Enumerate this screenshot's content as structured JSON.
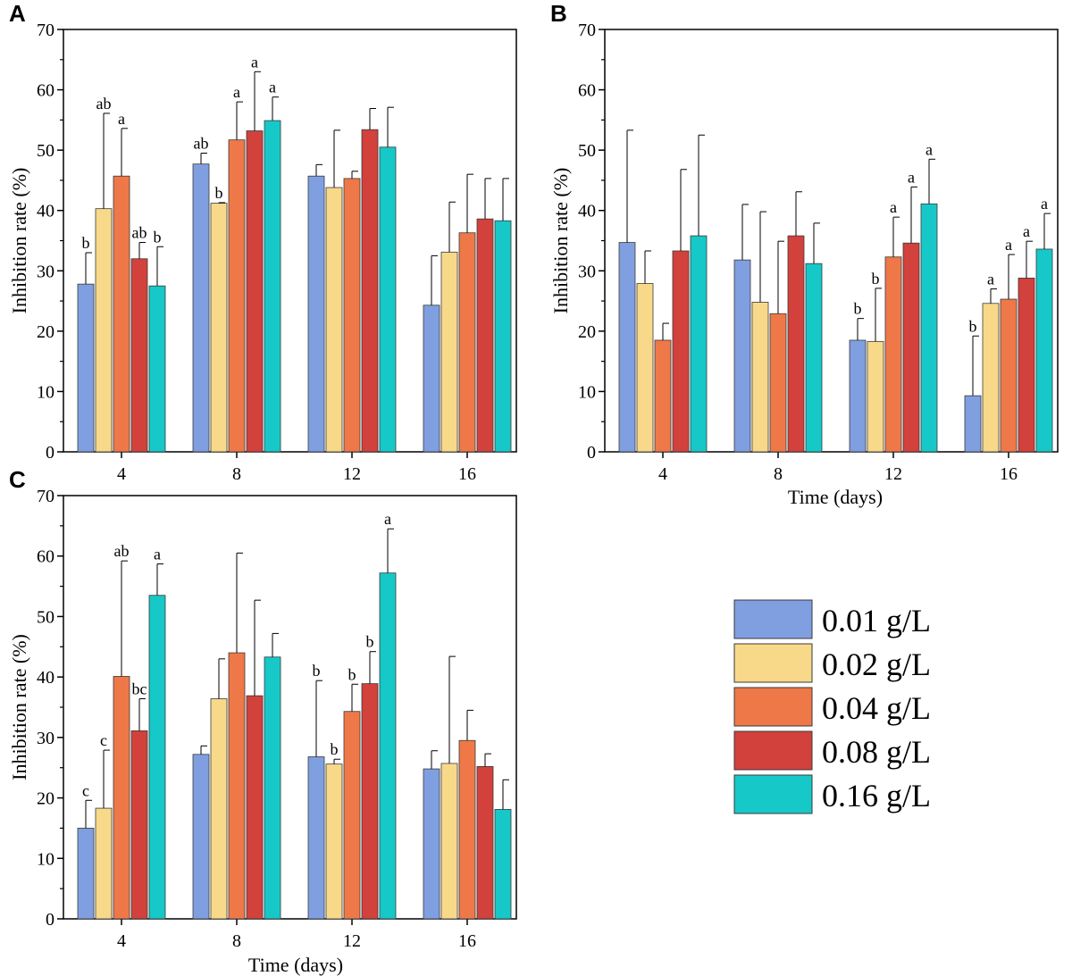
{
  "colors": {
    "0.01 g/L": "#7f9fe0",
    "0.02 g/L": "#f8d98a",
    "0.04 g/L": "#ef7848",
    "0.08 g/L": "#d2413c",
    "0.16 g/L": "#16c8c8",
    "error_bar": "#000000"
  },
  "legend": {
    "entries": [
      "0.01 g/L",
      "0.02 g/L",
      "0.04 g/L",
      "0.08 g/L",
      "0.16 g/L"
    ]
  },
  "chart_data": [
    {
      "type": "bar",
      "panel": "A",
      "title": "",
      "categories": [
        "4",
        "8",
        "12",
        "16"
      ],
      "xlabel": "",
      "ylabel": "Inhibition rate (%)",
      "ylim": [
        0,
        70
      ],
      "yticks": [
        0,
        10,
        20,
        30,
        40,
        50,
        60,
        70
      ],
      "series": [
        {
          "name": "0.01 g/L",
          "values": [
            27.8,
            47.7,
            45.7,
            24.3
          ],
          "errors": [
            5.2,
            1.8,
            1.9,
            8.2
          ],
          "labels": [
            "b",
            "ab",
            "",
            ""
          ]
        },
        {
          "name": "0.02 g/L",
          "values": [
            40.3,
            41.2,
            43.8,
            33.1
          ],
          "errors": [
            15.8,
            0.1,
            9.5,
            8.3
          ],
          "labels": [
            "ab",
            "b",
            "",
            ""
          ]
        },
        {
          "name": "0.04 g/L",
          "values": [
            45.7,
            51.7,
            45.3,
            36.3
          ],
          "errors": [
            7.9,
            6.3,
            1.2,
            9.7
          ],
          "labels": [
            "a",
            "a",
            "",
            ""
          ]
        },
        {
          "name": "0.08 g/L",
          "values": [
            32.0,
            53.2,
            53.4,
            38.6
          ],
          "errors": [
            2.7,
            9.8,
            3.5,
            6.7
          ],
          "labels": [
            "ab",
            "a",
            "",
            ""
          ]
        },
        {
          "name": "0.16 g/L",
          "values": [
            27.5,
            54.9,
            50.5,
            38.3
          ],
          "errors": [
            6.5,
            3.9,
            6.6,
            7.0
          ],
          "labels": [
            "b",
            "a",
            "",
            ""
          ]
        }
      ]
    },
    {
      "type": "bar",
      "panel": "B",
      "title": "",
      "categories": [
        "4",
        "8",
        "12",
        "16"
      ],
      "xlabel": "Time (days)",
      "ylabel": "Inhibition rate (%)",
      "ylim": [
        0,
        70
      ],
      "yticks": [
        0,
        10,
        20,
        30,
        40,
        50,
        60,
        70
      ],
      "series": [
        {
          "name": "0.01 g/L",
          "values": [
            34.7,
            31.8,
            18.5,
            9.3
          ],
          "errors": [
            18.6,
            9.2,
            3.6,
            9.9
          ],
          "labels": [
            "",
            "",
            "b",
            "b"
          ]
        },
        {
          "name": "0.02 g/L",
          "values": [
            27.9,
            24.8,
            18.3,
            24.6
          ],
          "errors": [
            5.4,
            15.0,
            8.8,
            2.4
          ],
          "labels": [
            "",
            "",
            "b",
            "a"
          ]
        },
        {
          "name": "0.04 g/L",
          "values": [
            18.5,
            22.9,
            32.3,
            25.3
          ],
          "errors": [
            2.8,
            12.0,
            6.6,
            7.4
          ],
          "labels": [
            "",
            "",
            "a",
            "a"
          ]
        },
        {
          "name": "0.08 g/L",
          "values": [
            33.3,
            35.8,
            34.6,
            28.8
          ],
          "errors": [
            13.5,
            7.3,
            9.3,
            6.1
          ],
          "labels": [
            "",
            "",
            "a",
            "a"
          ]
        },
        {
          "name": "0.16 g/L",
          "values": [
            35.8,
            31.2,
            41.1,
            33.6
          ],
          "errors": [
            16.7,
            6.7,
            7.4,
            5.9
          ],
          "labels": [
            "",
            "",
            "a",
            "a"
          ]
        }
      ]
    },
    {
      "type": "bar",
      "panel": "C",
      "title": "",
      "categories": [
        "4",
        "8",
        "12",
        "16"
      ],
      "xlabel": "Time (days)",
      "ylabel": "Inhibition rate (%)",
      "ylim": [
        0,
        70
      ],
      "yticks": [
        0,
        10,
        20,
        30,
        40,
        50,
        60,
        70
      ],
      "series": [
        {
          "name": "0.01 g/L",
          "values": [
            15.0,
            27.2,
            26.8,
            24.8
          ],
          "errors": [
            4.6,
            1.4,
            12.6,
            3.0
          ],
          "labels": [
            "c",
            "",
            "b",
            ""
          ]
        },
        {
          "name": "0.02 g/L",
          "values": [
            18.3,
            36.4,
            25.6,
            25.7
          ],
          "errors": [
            9.6,
            6.6,
            0.8,
            17.7
          ],
          "labels": [
            "c",
            "",
            "b",
            ""
          ]
        },
        {
          "name": "0.04 g/L",
          "values": [
            40.1,
            44.0,
            34.3,
            29.5
          ],
          "errors": [
            19.1,
            16.5,
            4.5,
            5.0
          ],
          "labels": [
            "ab",
            "",
            "b",
            ""
          ]
        },
        {
          "name": "0.08 g/L",
          "values": [
            31.1,
            36.9,
            38.9,
            25.2
          ],
          "errors": [
            5.3,
            15.8,
            5.3,
            2.1
          ],
          "labels": [
            "bc",
            "",
            "b",
            ""
          ]
        },
        {
          "name": "0.16 g/L",
          "values": [
            53.5,
            43.3,
            57.2,
            18.1
          ],
          "errors": [
            5.2,
            3.9,
            7.3,
            4.9
          ],
          "labels": [
            "a",
            "",
            "a",
            ""
          ]
        }
      ]
    }
  ]
}
